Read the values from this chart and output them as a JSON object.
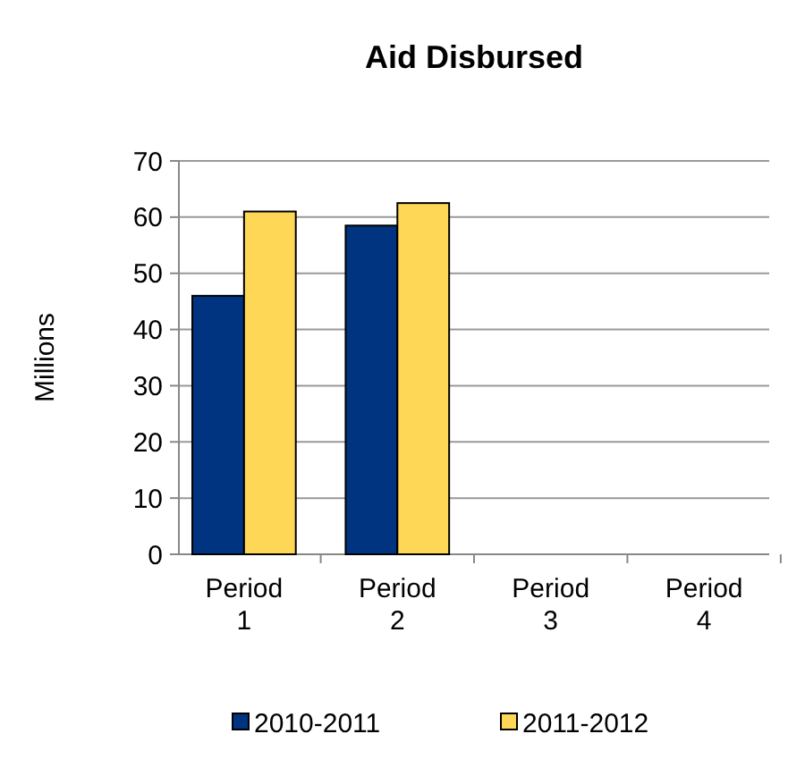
{
  "chart_data": {
    "type": "bar",
    "title": "Aid Disbursed",
    "ylabel": "Millions",
    "categories": [
      "Period\n1",
      "Period\n2",
      "Period\n3",
      "Period\n4"
    ],
    "series": [
      {
        "name": "2010-2011",
        "color": "#003380",
        "values": [
          46,
          58.5,
          null,
          null
        ]
      },
      {
        "name": "2011-2012",
        "color": "#ffd757",
        "values": [
          61,
          62.5,
          null,
          null
        ]
      }
    ],
    "ylim": [
      0,
      70
    ],
    "yticks": [
      0,
      10,
      20,
      30,
      40,
      50,
      60,
      70
    ],
    "grid": "y",
    "legend": "bottom"
  }
}
